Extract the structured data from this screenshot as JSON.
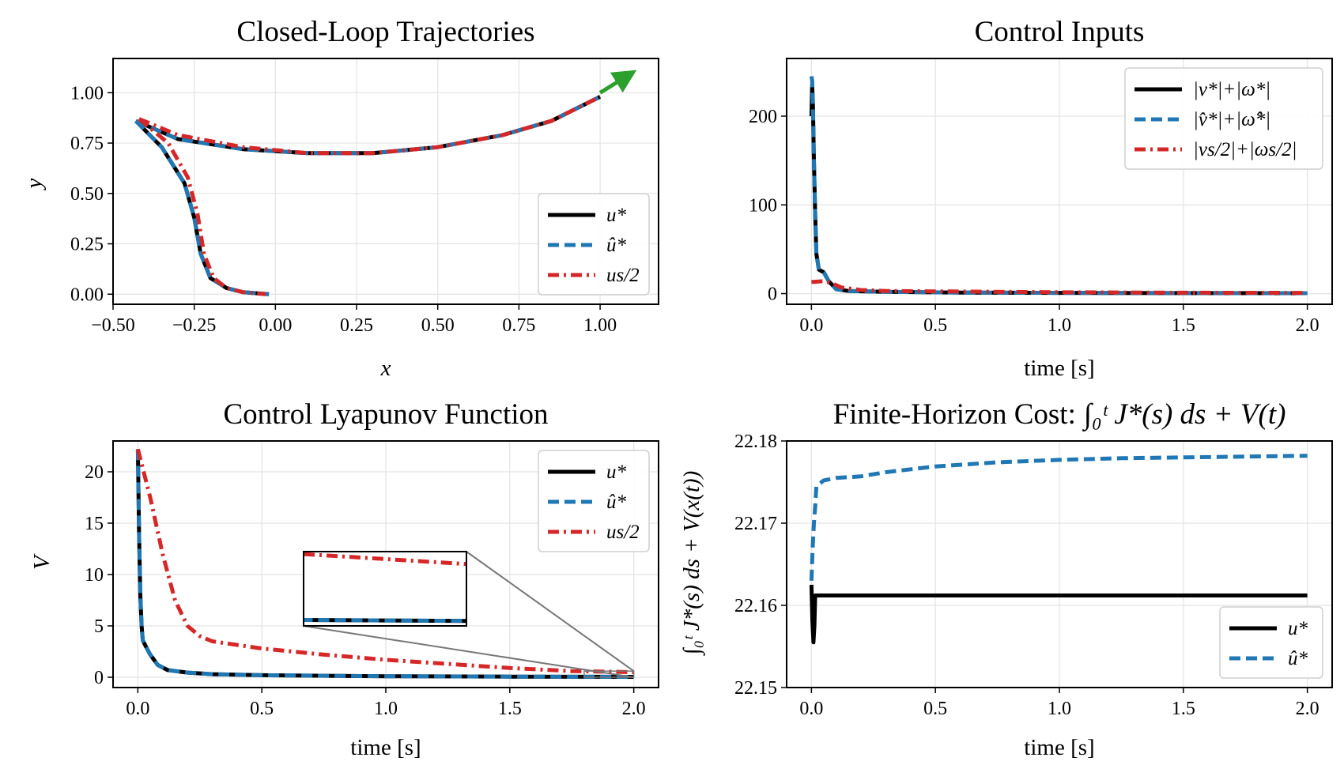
{
  "colors": {
    "black": "#000000",
    "blue": "#1f77b4",
    "red": "#d62728",
    "green": "#2ca02c",
    "inset_line": "#777777"
  },
  "chart_data": [
    {
      "type": "line",
      "title": "Closed-Loop Trajectories",
      "xlabel": "x",
      "ylabel": "y",
      "xlim": [
        -0.5,
        1.18
      ],
      "ylim": [
        -0.05,
        1.17
      ],
      "xticks": [
        "−0.50",
        "−0.25",
        "0.00",
        "0.25",
        "0.50",
        "0.75",
        "1.00"
      ],
      "yticks": [
        "0.00",
        "0.25",
        "0.50",
        "0.75",
        "1.00"
      ],
      "grid": true,
      "legend_position": "lower right",
      "goal_arrow": {
        "x": [
          1.0,
          1.1
        ],
        "y": [
          1.0,
          1.1
        ]
      },
      "series": [
        {
          "name": "u*",
          "color": "#000000",
          "style": "solid",
          "trajectories": [
            {
              "x": [
                -0.43,
                -0.3,
                -0.1,
                0.1,
                0.3,
                0.5,
                0.7,
                0.85,
                1.0
              ],
              "y": [
                0.86,
                0.77,
                0.72,
                0.7,
                0.7,
                0.73,
                0.79,
                0.86,
                0.98
              ]
            },
            {
              "x": [
                -0.43,
                -0.35,
                -0.28,
                -0.25,
                -0.23,
                -0.2,
                -0.15,
                -0.1,
                -0.02
              ],
              "y": [
                0.86,
                0.73,
                0.55,
                0.38,
                0.2,
                0.08,
                0.03,
                0.01,
                0.0
              ]
            }
          ]
        },
        {
          "name": "û*",
          "color": "#1f77b4",
          "style": "dashed",
          "trajectories": [
            {
              "x": [
                -0.43,
                -0.3,
                -0.1,
                0.1,
                0.3,
                0.5,
                0.7,
                0.85,
                1.0
              ],
              "y": [
                0.86,
                0.77,
                0.72,
                0.7,
                0.7,
                0.73,
                0.79,
                0.86,
                0.98
              ]
            },
            {
              "x": [
                -0.43,
                -0.35,
                -0.28,
                -0.25,
                -0.23,
                -0.2,
                -0.15,
                -0.1,
                -0.02
              ],
              "y": [
                0.86,
                0.73,
                0.55,
                0.38,
                0.2,
                0.08,
                0.03,
                0.01,
                0.0
              ]
            }
          ]
        },
        {
          "name": "us/2",
          "color": "#d62728",
          "style": "dashdot",
          "trajectories": [
            {
              "x": [
                -0.42,
                -0.3,
                -0.1,
                0.1,
                0.3,
                0.5,
                0.7,
                0.85,
                1.0
              ],
              "y": [
                0.87,
                0.79,
                0.73,
                0.7,
                0.7,
                0.73,
                0.79,
                0.86,
                0.98
              ]
            },
            {
              "x": [
                -0.42,
                -0.33,
                -0.27,
                -0.24,
                -0.22,
                -0.19,
                -0.15,
                -0.1,
                -0.03
              ],
              "y": [
                0.87,
                0.75,
                0.58,
                0.4,
                0.2,
                0.08,
                0.03,
                0.01,
                0.0
              ]
            }
          ]
        }
      ]
    },
    {
      "type": "line",
      "title": "Control Inputs",
      "xlabel": "time [s]",
      "ylabel": "",
      "xlim": [
        -0.1,
        2.1
      ],
      "ylim": [
        -12,
        265
      ],
      "xticks": [
        "0.0",
        "0.5",
        "1.0",
        "1.5",
        "2.0"
      ],
      "yticks": [
        "0",
        "100",
        "200"
      ],
      "grid": true,
      "legend_position": "upper right",
      "series": [
        {
          "name": "|v*|+|ω*|",
          "color": "#000000",
          "style": "solid",
          "x": [
            0,
            0.003,
            0.006,
            0.01,
            0.015,
            0.02,
            0.03,
            0.05,
            0.07,
            0.1,
            0.15,
            0.3,
            0.6,
            1.0,
            1.5,
            2.0
          ],
          "y": [
            200,
            235,
            215,
            150,
            90,
            45,
            27,
            24,
            14,
            5,
            3,
            2,
            1.2,
            0.8,
            0.6,
            0.5
          ]
        },
        {
          "name": "|v̂*|+|ω̂*|",
          "color": "#1f77b4",
          "style": "dashed",
          "x": [
            0,
            0.003,
            0.006,
            0.01,
            0.015,
            0.02,
            0.03,
            0.05,
            0.07,
            0.1,
            0.15,
            0.3,
            0.6,
            1.0,
            1.5,
            2.0
          ],
          "y": [
            245,
            240,
            210,
            150,
            90,
            45,
            27,
            24,
            14,
            5,
            3,
            2,
            1.2,
            0.8,
            0.6,
            0.5
          ]
        },
        {
          "name": "|vs/2|+|ωs/2|",
          "color": "#d62728",
          "style": "dashdot",
          "x": [
            0,
            0.05,
            0.08,
            0.12,
            0.2,
            0.3,
            0.5,
            1.0,
            1.5,
            2.0
          ],
          "y": [
            13,
            14,
            12,
            7,
            4,
            3,
            2.5,
            1.5,
            1,
            0.8
          ]
        }
      ]
    },
    {
      "type": "line",
      "title": "Control Lyapunov Function",
      "xlabel": "time [s]",
      "ylabel": "V",
      "xlim": [
        -0.1,
        2.1
      ],
      "ylim": [
        -1,
        23
      ],
      "xticks": [
        "0.0",
        "0.5",
        "1.0",
        "1.5",
        "2.0"
      ],
      "yticks": [
        "0",
        "5",
        "10",
        "15",
        "20"
      ],
      "grid": true,
      "legend_position": "upper right",
      "inset": {
        "xlim": [
          1.8,
          2.0
        ],
        "ylim": [
          0.0,
          0.6
        ]
      },
      "series": [
        {
          "name": "u*",
          "color": "#000000",
          "style": "solid",
          "x": [
            0,
            0.005,
            0.01,
            0.015,
            0.02,
            0.03,
            0.05,
            0.08,
            0.12,
            0.2,
            0.3,
            0.5,
            1.0,
            1.5,
            2.0
          ],
          "y": [
            22.2,
            14,
            8,
            5,
            3.6,
            3.1,
            2.2,
            1.2,
            0.7,
            0.45,
            0.3,
            0.2,
            0.1,
            0.06,
            0.04
          ]
        },
        {
          "name": "û*",
          "color": "#1f77b4",
          "style": "dashed",
          "x": [
            0,
            0.005,
            0.01,
            0.015,
            0.02,
            0.03,
            0.05,
            0.08,
            0.12,
            0.2,
            0.3,
            0.5,
            1.0,
            1.5,
            2.0
          ],
          "y": [
            22.2,
            14,
            8,
            5,
            3.6,
            3.1,
            2.2,
            1.2,
            0.7,
            0.45,
            0.3,
            0.2,
            0.1,
            0.06,
            0.04
          ]
        },
        {
          "name": "us/2",
          "color": "#d62728",
          "style": "dashdot",
          "x": [
            0,
            0.05,
            0.1,
            0.15,
            0.2,
            0.25,
            0.3,
            0.5,
            0.75,
            1.0,
            1.25,
            1.5,
            1.75,
            2.0
          ],
          "y": [
            22.2,
            17.5,
            12,
            7.5,
            5,
            4,
            3.5,
            2.8,
            2.2,
            1.7,
            1.3,
            0.9,
            0.6,
            0.5
          ]
        }
      ]
    },
    {
      "type": "line",
      "title": "Finite-Horizon Cost:",
      "title_math": "∫₀ᵗ J*(s) ds + V(t)",
      "xlabel": "time [s]",
      "ylabel": "∫₀ᵗ J*(s) ds + V(x(t))",
      "xlim": [
        -0.1,
        2.1
      ],
      "ylim": [
        22.15,
        22.18
      ],
      "xticks": [
        "0.0",
        "0.5",
        "1.0",
        "1.5",
        "2.0"
      ],
      "yticks": [
        "22.15",
        "22.16",
        "22.17",
        "22.18"
      ],
      "grid": true,
      "legend_position": "lower right",
      "series": [
        {
          "name": "u*",
          "color": "#000000",
          "style": "solid",
          "x": [
            0,
            0.004,
            0.008,
            0.012,
            0.015,
            0.02,
            0.5,
            1.0,
            1.5,
            2.0
          ],
          "y": [
            22.1625,
            22.158,
            22.1555,
            22.1575,
            22.1612,
            22.1612,
            22.1612,
            22.1612,
            22.1612,
            22.1612
          ]
        },
        {
          "name": "û*",
          "color": "#1f77b4",
          "style": "dashed",
          "x": [
            0,
            0.005,
            0.01,
            0.015,
            0.02,
            0.05,
            0.1,
            0.2,
            0.3,
            0.5,
            0.75,
            1.0,
            1.25,
            1.5,
            2.0
          ],
          "y": [
            22.163,
            22.167,
            22.17,
            22.172,
            22.1745,
            22.1752,
            22.1755,
            22.1757,
            22.1762,
            22.1769,
            22.1774,
            22.1777,
            22.1779,
            22.178,
            22.1782
          ]
        }
      ]
    }
  ]
}
